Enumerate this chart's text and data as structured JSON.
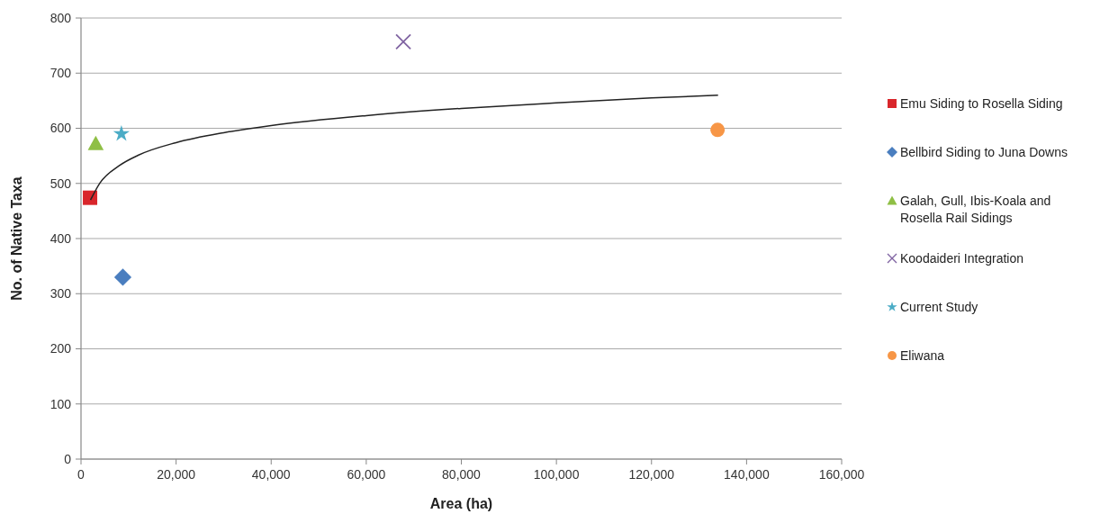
{
  "chart_data": {
    "type": "scatter",
    "xlabel": "Area (ha)",
    "ylabel": "No. of Native Taxa",
    "xlim": [
      0,
      160000
    ],
    "ylim": [
      0,
      800
    ],
    "xticks": [
      0,
      {
        "value": 20000,
        "label": "20,000"
      },
      {
        "value": 40000,
        "label": "40,000"
      },
      {
        "value": 60000,
        "label": "60,000"
      },
      {
        "value": 80000,
        "label": "80,000"
      },
      {
        "value": 100000,
        "label": "100,000"
      },
      {
        "value": 120000,
        "label": "120,000"
      },
      {
        "value": 140000,
        "label": "140,000"
      },
      {
        "value": 160000,
        "label": "160,000"
      }
    ],
    "yticks": [
      0,
      100,
      200,
      300,
      400,
      500,
      600,
      700,
      800
    ],
    "grid": "y",
    "legend": "right",
    "series": [
      {
        "name": "Emu Siding to Rosella Siding",
        "color": "#d9262b",
        "marker": "square",
        "x": [
          1900
        ],
        "values": [
          474
        ]
      },
      {
        "name": "Bellbird Siding to Juna Downs",
        "color": "#4a7ebf",
        "marker": "diamond",
        "x": [
          8800
        ],
        "values": [
          330
        ]
      },
      {
        "name": "Galah, Gull, Ibis-Koala and Rosella Rail Sidings",
        "color": "#8fbf45",
        "marker": "triangle",
        "x": [
          3100
        ],
        "values": [
          572
        ]
      },
      {
        "name": "Koodaideri Integration",
        "color": "#8064a2",
        "marker": "cross",
        "x": [
          67800
        ],
        "values": [
          757
        ]
      },
      {
        "name": "Current Study",
        "color": "#4bacc6",
        "marker": "star",
        "x": [
          8500
        ],
        "values": [
          590
        ]
      },
      {
        "name": "Eliwana",
        "color": "#f79646",
        "marker": "circle",
        "x": [
          133900
        ],
        "values": [
          597
        ]
      },
      {
        "type": "line",
        "color": "#222222",
        "marker": "none",
        "x": [
          2000,
          4000,
          8000,
          12000,
          20000,
          30000,
          40000,
          60000,
          80000,
          100000,
          120000,
          134000
        ],
        "values": [
          470,
          501,
          532,
          551,
          574,
          592,
          605,
          623,
          636,
          646,
          655,
          660
        ]
      }
    ]
  }
}
